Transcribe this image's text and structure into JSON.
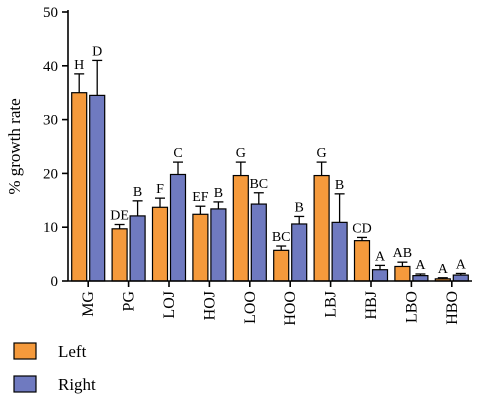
{
  "chart_data": {
    "type": "bar",
    "ylabel": "% growth rate",
    "xlabel": "",
    "ylim": [
      0,
      50
    ],
    "yticks": [
      0,
      10,
      20,
      30,
      40,
      50
    ],
    "grid": false,
    "legend_position": "bottom-left",
    "categories": [
      "MG",
      "PG",
      "LOJ",
      "HOJ",
      "LOO",
      "HOO",
      "LBJ",
      "HBJ",
      "LBO",
      "HBO"
    ],
    "series": [
      {
        "name": "Left",
        "color": "#f59a3c",
        "values": [
          35,
          9.7,
          13.7,
          12.4,
          19.6,
          5.7,
          19.6,
          7.5,
          2.7,
          0.4
        ],
        "errors": [
          3.5,
          0.8,
          1.7,
          1.5,
          2.5,
          0.8,
          2.5,
          0.6,
          0.8,
          0.2
        ],
        "letters": [
          "H",
          "DE",
          "F",
          "EF",
          "G",
          "BC",
          "G",
          "CD",
          "AB",
          "A"
        ]
      },
      {
        "name": "Right",
        "color": "#6f7ac0",
        "values": [
          34.5,
          12.1,
          19.8,
          13.4,
          14.3,
          10.6,
          10.9,
          2.1,
          1.0,
          1.1
        ],
        "errors": [
          6.5,
          2.8,
          2.3,
          1.3,
          2.1,
          1.4,
          5.3,
          0.8,
          0.3,
          0.3
        ],
        "letters": [
          "D",
          "B",
          "C",
          "B",
          "BC",
          "B",
          "B",
          "A",
          "A",
          "A"
        ]
      }
    ]
  }
}
